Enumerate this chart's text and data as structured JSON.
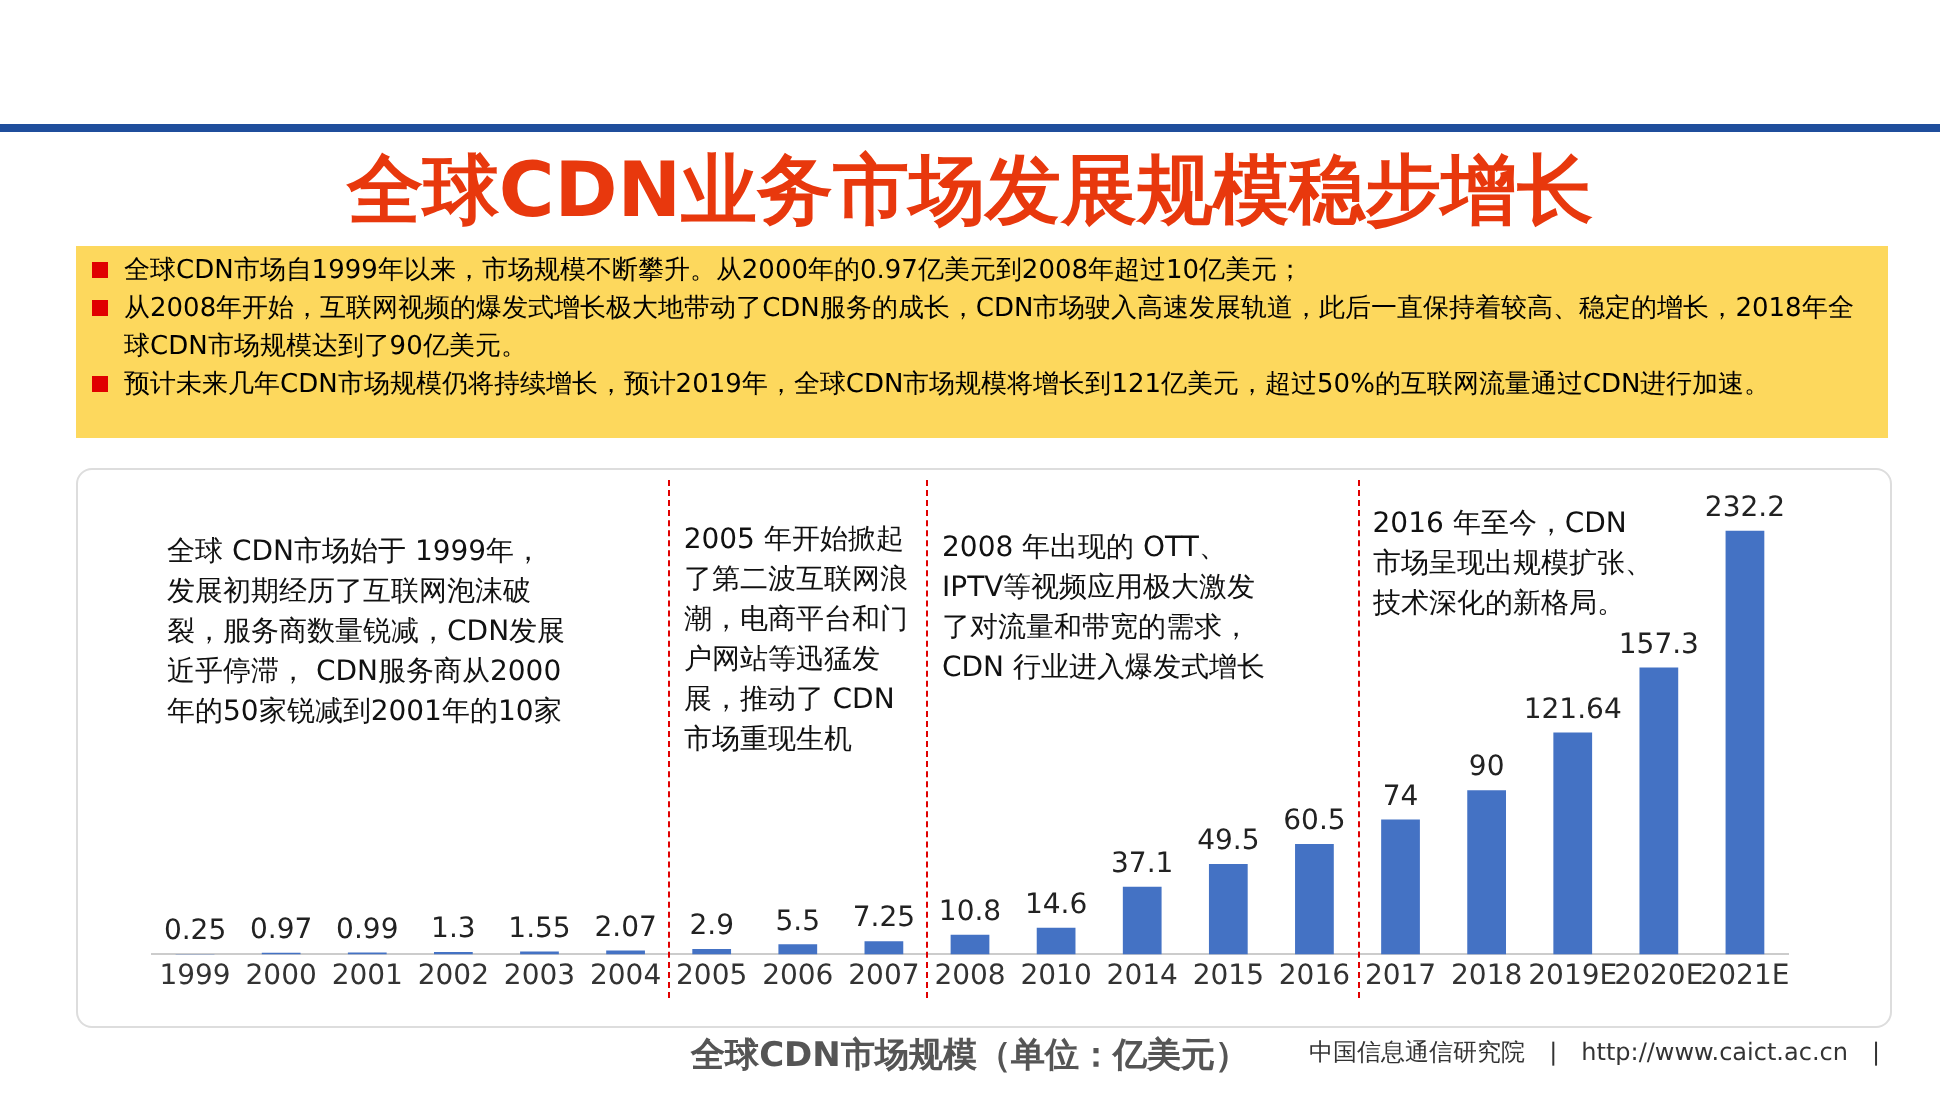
{
  "chart_data": {
    "type": "bar",
    "title": "全球CDN业务市场发展规模稳步增长",
    "categories": [
      "1999",
      "2000",
      "2001",
      "2002",
      "2003",
      "2004",
      "2005",
      "2006",
      "2007",
      "2008",
      "2010",
      "2014",
      "2015",
      "2016",
      "2017",
      "2018",
      "2019E",
      "2020E",
      "2021E"
    ],
    "values": [
      0.25,
      0.97,
      0.99,
      1.3,
      1.55,
      2.07,
      2.9,
      5.5,
      7.25,
      10.8,
      14.6,
      37.1,
      49.5,
      60.5,
      74,
      90,
      121.64,
      157.3,
      232.2
    ],
    "color": "#4472c4",
    "ylim": [
      0,
      260
    ],
    "tick_labels": "x",
    "data_labels": true,
    "grid": false,
    "legend": false,
    "annotations": [
      "全球CDN市场自1999年以来，市场规模不断攀升。从2000年的0.97亿美元到2008年超过10亿美元；",
      "从2008年开始，互联网视频的爆发式增长极大地带动了CDN服务的成长，CDN市场驶入高速发展轨道，此后一直保持着较高、稳定的增长，2018年全球CDN市场规模达到了90亿美元。",
      "预计未来几年CDN市场规模仍将持续增长，预计2019年，全球CDN市场规模将增长到121亿美元，超过50%的互联网流量通过CDN进行加速。",
      "全球 CDN市场始于 1999年，发展初期经历了互联网泡沫破裂，服务商数量锐减，CDN发展近乎停滞， CDN服务商从2000年的50家锐减到2001年的10家",
      "2005 年开始掀起了第二波互联网浪潮，电商平台和门户网站等迅猛发展，推动了 CDN 市场重现生机",
      "2008 年出现的 OTT、IPTV等视频应用极大激发了对流量和带宽的需求， CDN 行业进入爆发式增长",
      "2016 年至今，CDN 市场呈现出规模扩张、技术深化的新格局。",
      "全球CDN市场规模（单位：亿美元）",
      "中国信息通信研究院　|　http://www.caict.ac.cn　|"
    ]
  }
}
